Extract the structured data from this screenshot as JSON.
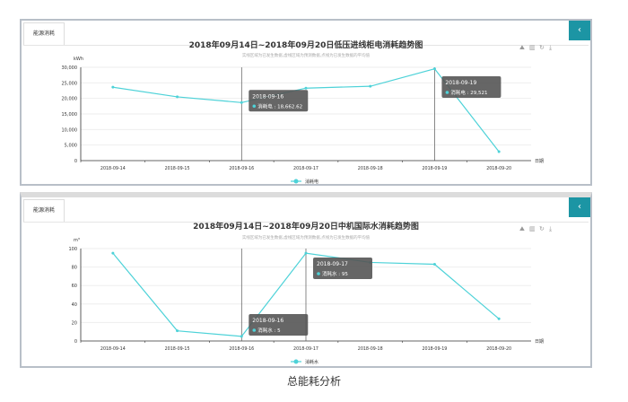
{
  "caption": "总能耗分析",
  "chart_data": [
    {
      "type": "line",
      "tab": "能源消耗",
      "title": "2018年09月14日~2018年09月20日低压进线柜电消耗趋势图",
      "subtitle": "实线区域为已发生数据,虚线区域为预测数据,点线为已发生数据的平均值",
      "ylabel": "kWh",
      "xlabel": "日期",
      "ylim": [
        0,
        30000
      ],
      "yticks": [
        "0",
        "5,000",
        "10,000",
        "15,000",
        "20,000",
        "25,000",
        "30,000"
      ],
      "grid": true,
      "legend_position": "bottom",
      "color": "#4dd2d8",
      "categories": [
        "2018-09-14",
        "2018-09-15",
        "2018-09-16",
        "2018-09-17",
        "2018-09-18",
        "2018-09-19",
        "2018-09-20"
      ],
      "series": [
        {
          "name": "消耗电",
          "values": [
            23600,
            20500,
            18662.62,
            23300,
            23900,
            29521,
            2900
          ]
        }
      ],
      "tooltips": [
        {
          "index": 2,
          "date": "2018-09-16",
          "label": "消耗电 : 18,662.62"
        },
        {
          "index": 5,
          "date": "2018-09-19",
          "label": "消耗电 : 29,521"
        }
      ]
    },
    {
      "type": "line",
      "tab": "能源消耗",
      "title": "2018年09月14日~2018年09月20日中机国际水消耗趋势图",
      "subtitle": "实线区域为已发生数据,虚线区域为预测数据,点线为已发生数据的平均值",
      "ylabel": "m³",
      "xlabel": "日期",
      "ylim": [
        0,
        100
      ],
      "yticks": [
        "0",
        "20",
        "40",
        "60",
        "80",
        "100"
      ],
      "grid": true,
      "legend_position": "bottom",
      "color": "#4dd2d8",
      "categories": [
        "2018-09-14",
        "2018-09-15",
        "2018-09-16",
        "2018-09-17",
        "2018-09-18",
        "2018-09-19",
        "2018-09-20"
      ],
      "series": [
        {
          "name": "消耗水",
          "values": [
            95,
            11,
            5,
            95,
            85,
            83,
            24
          ]
        }
      ],
      "tooltips": [
        {
          "index": 2,
          "date": "2018-09-16",
          "label": "消耗水 : 5"
        },
        {
          "index": 3,
          "date": "2018-09-17",
          "label": "消耗水 : 95"
        }
      ]
    }
  ],
  "icons": [
    "line-chart-icon",
    "bar-chart-icon",
    "refresh-icon",
    "download-icon"
  ],
  "collapse_icon": "chevron-left-icon"
}
